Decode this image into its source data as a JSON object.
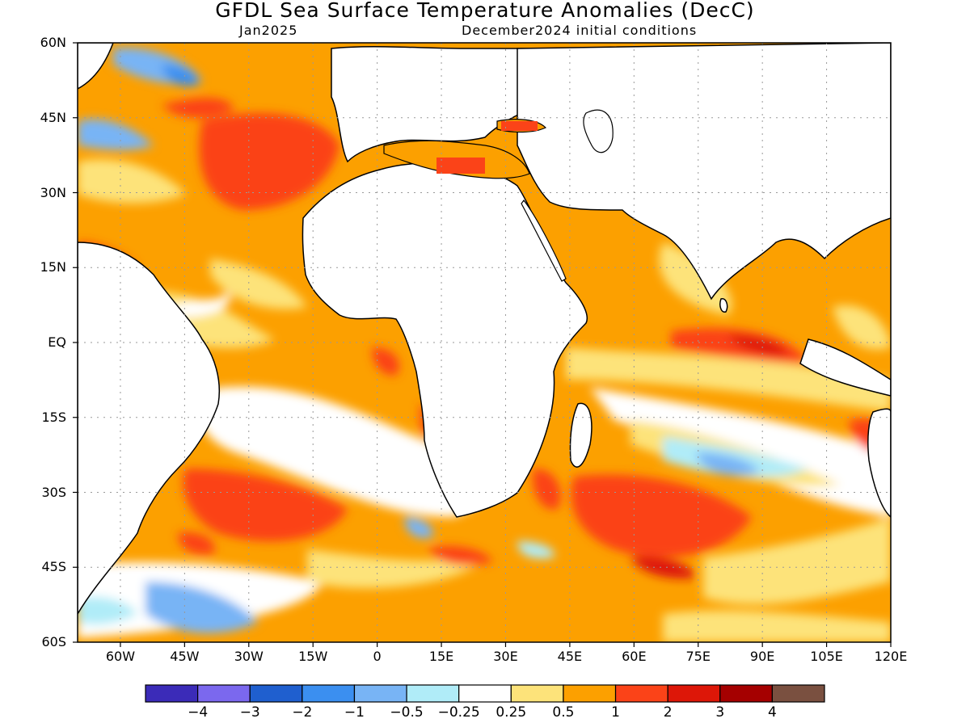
{
  "title": "GFDL Sea Surface Temperature Anomalies (DecC)",
  "subtitle_left": "Jan2025",
  "subtitle_right": "December2024 initial conditions",
  "map": {
    "lon_range": [
      -70,
      120
    ],
    "lat_range": [
      -60,
      60
    ],
    "lat_labels": [
      "60N",
      "45N",
      "30N",
      "15N",
      "EQ",
      "15S",
      "30S",
      "45S",
      "60S"
    ],
    "lon_labels": [
      "60W",
      "45W",
      "30W",
      "15W",
      "0",
      "15E",
      "30E",
      "45E",
      "60E",
      "75E",
      "90E",
      "105E",
      "120E"
    ],
    "grid": "dotted"
  },
  "colorbar": {
    "colors": [
      "#3b2bb8",
      "#7b68ee",
      "#1f5fcf",
      "#3b8ff0",
      "#78b4f5",
      "#b0ecf8",
      "#ffffff",
      "#fde37a",
      "#fca000",
      "#fb4318",
      "#dd1708",
      "#a50000",
      "#7a5040"
    ],
    "labels": [
      "−4",
      "−3",
      "−2",
      "−1",
      "−0.5",
      "−0.25",
      "0.25",
      "0.5",
      "1",
      "2",
      "3",
      "4"
    ]
  },
  "colors": {
    "land": "#ffffff",
    "coast": "#000000"
  }
}
